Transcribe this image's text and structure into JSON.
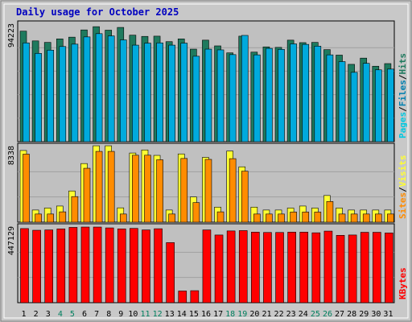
{
  "title": "Daily usage for October 2025",
  "chart_data": [
    {
      "type": "bar",
      "panel": "pages-files-hits",
      "max_label": "94223",
      "ymax": 94223,
      "legend": [
        "Pages",
        "/",
        "Files",
        "/",
        "Hits"
      ],
      "colors": {
        "hits": "#1e7a5e",
        "files": "#00aadd",
        "pages": "#00d7ff",
        "legend_pages": "#00c8e0",
        "legend_files": "#0080b0",
        "legend_hits": "#1e7a5e"
      },
      "x": [
        1,
        2,
        3,
        4,
        5,
        6,
        7,
        8,
        9,
        10,
        11,
        12,
        13,
        14,
        15,
        16,
        17,
        18,
        19,
        20,
        21,
        22,
        23,
        24,
        25,
        26,
        27,
        28,
        29,
        30,
        31
      ],
      "series": [
        {
          "name": "Hits",
          "values": [
            88600,
            80800,
            79600,
            82400,
            83800,
            89600,
            92200,
            89400,
            91600,
            85400,
            84400,
            84600,
            80200,
            82400,
            74200,
            81400,
            76800,
            71200,
            84600,
            71800,
            76000,
            75600,
            81400,
            79400,
            79600,
            73800,
            69400,
            62000,
            67000,
            60500,
            62600
          ]
        },
        {
          "name": "Files",
          "values": [
            79200,
            70800,
            73400,
            76300,
            78200,
            84000,
            86600,
            84800,
            81600,
            77400,
            79000,
            79200,
            77400,
            79000,
            68500,
            74200,
            73600,
            69800,
            85200,
            69600,
            74800,
            74000,
            78400,
            78000,
            76600,
            69600,
            64200,
            55600,
            62800,
            57600,
            58200
          ]
        }
      ]
    },
    {
      "type": "bar",
      "panel": "visits-sites",
      "max_label": "8338",
      "ymax": 8338,
      "legend": [
        "Sites",
        "/",
        "Visits"
      ],
      "colors": {
        "visits": "#ffff33",
        "sites": "#ff8c00",
        "legend_sites": "#ff8c00",
        "legend_visits": "#ffff33"
      },
      "x": [
        1,
        2,
        3,
        4,
        5,
        6,
        7,
        8,
        9,
        10,
        11,
        12,
        13,
        14,
        15,
        16,
        17,
        18,
        19,
        20,
        21,
        22,
        23,
        24,
        25,
        26,
        27,
        28,
        29,
        30,
        31
      ],
      "series": [
        {
          "name": "Visits",
          "values": [
            7900,
            1340,
            1560,
            1780,
            3440,
            6460,
            8420,
            8420,
            1580,
            7620,
            7960,
            7360,
            1340,
            7520,
            2780,
            7140,
            1660,
            7840,
            6100,
            1660,
            1340,
            1340,
            1560,
            1780,
            1560,
            2940,
            1560,
            1340,
            1340,
            1340,
            1340
          ]
        },
        {
          "name": "Sites",
          "values": [
            7500,
            900,
            900,
            1140,
            2820,
            5940,
            7800,
            7800,
            900,
            7380,
            7380,
            6880,
            900,
            7020,
            2160,
            6920,
            1140,
            7000,
            5620,
            900,
            900,
            900,
            1120,
            1120,
            1120,
            2280,
            900,
            900,
            900,
            900,
            900
          ]
        }
      ]
    },
    {
      "type": "bar",
      "panel": "kbytes",
      "max_label": "447129",
      "ymax": 447129,
      "legend": [
        "KBytes"
      ],
      "colors": {
        "kbytes": "#ff0000",
        "legend_kbytes": "#ff0000"
      },
      "x": [
        1,
        2,
        3,
        4,
        5,
        6,
        7,
        8,
        9,
        10,
        11,
        12,
        13,
        14,
        15,
        16,
        17,
        18,
        19,
        20,
        21,
        22,
        23,
        24,
        25,
        26,
        27,
        28,
        29,
        30,
        31
      ],
      "series": [
        {
          "name": "KBytes",
          "values": [
            438000,
            428000,
            430000,
            436000,
            445000,
            447000,
            447000,
            442000,
            436000,
            439000,
            430000,
            437000,
            355000,
            69000,
            71000,
            430000,
            400000,
            424000,
            426000,
            417000,
            415000,
            415000,
            417000,
            417000,
            413000,
            423000,
            398000,
            400000,
            416000,
            416000,
            412000
          ]
        }
      ]
    }
  ],
  "x_tick_colors": {
    "weekday": "#000000",
    "weekend": "#00805f"
  },
  "weekend_days": [
    4,
    5,
    11,
    12,
    18,
    19,
    25,
    26
  ]
}
